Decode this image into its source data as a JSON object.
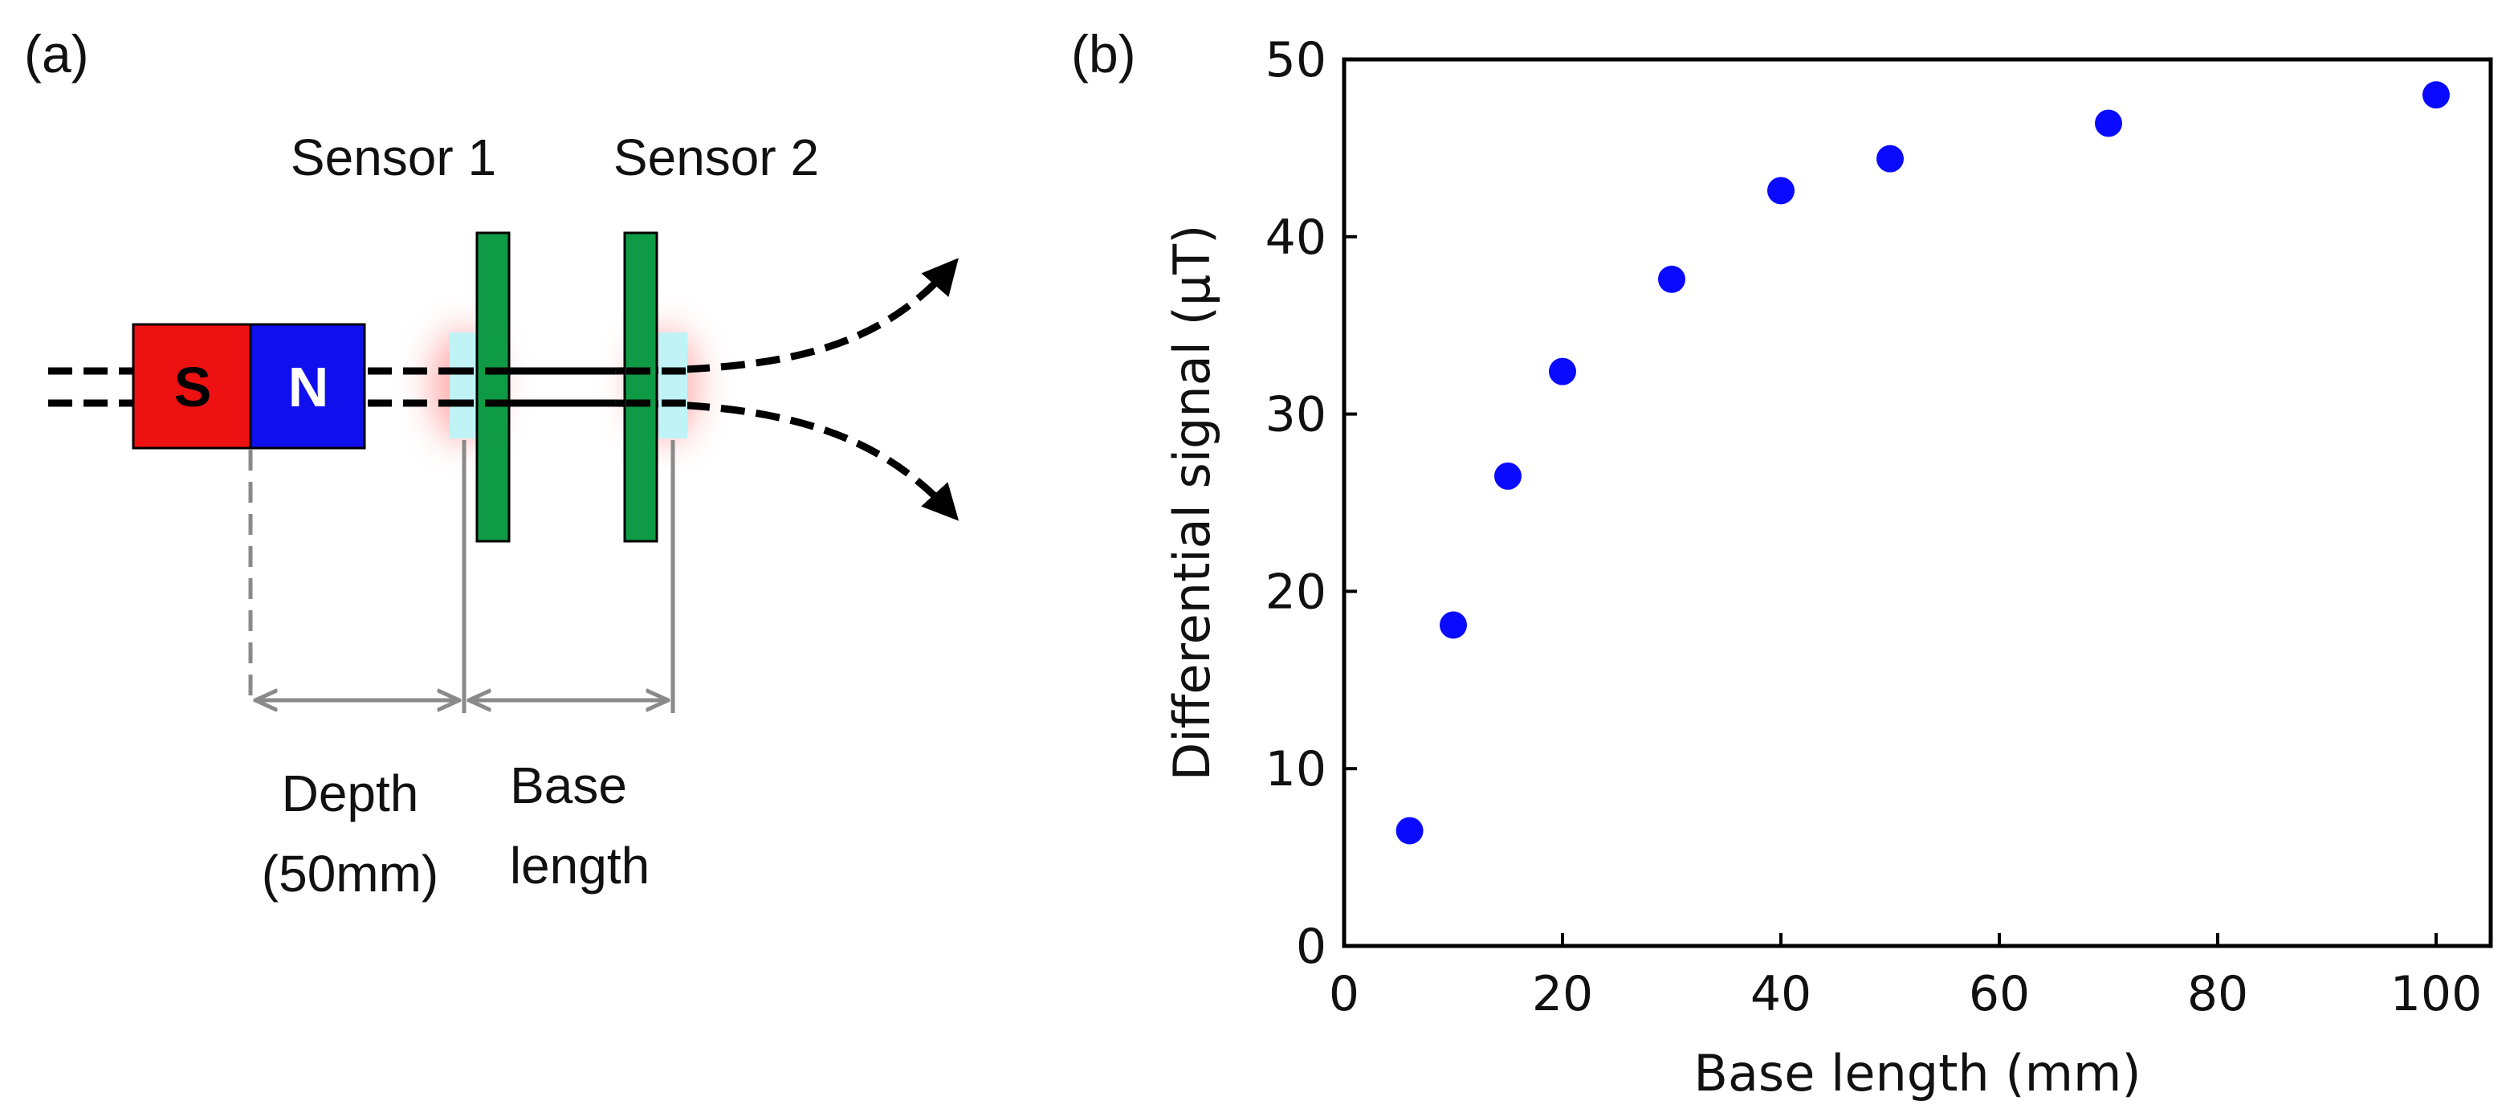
{
  "panel_a": {
    "label": "(a)",
    "sensor1_label": "Sensor 1",
    "sensor2_label": "Sensor 2",
    "magnet_s": "S",
    "magnet_n": "N",
    "depth_label": "Depth",
    "depth_value": "(50mm)",
    "base_label": "Base",
    "base_label_2": "length",
    "colors": {
      "south": "#ee1111",
      "north": "#1010ee",
      "sensor": "#0f9a46",
      "cell": "#bff3f6",
      "glow": "#ff9a9a"
    }
  },
  "chart_data": {
    "panel_label": "(b)",
    "type": "scatter",
    "title": "",
    "xlabel": "Base length (mm)",
    "ylabel": "Differential signal (μT)",
    "xlim": [
      0,
      105
    ],
    "ylim": [
      0,
      50
    ],
    "xticks": [
      "0",
      "20",
      "40",
      "60",
      "80",
      "100"
    ],
    "yticks": [
      "0",
      "10",
      "20",
      "30",
      "40",
      "50"
    ],
    "grid": false,
    "series": [
      {
        "name": "Differential signal",
        "color": "#0a0aff",
        "x": [
          6,
          10,
          15,
          20,
          30,
          40,
          50,
          70,
          100
        ],
        "y": [
          6.5,
          18.1,
          26.5,
          32.4,
          37.6,
          42.6,
          44.4,
          46.4,
          48.0
        ]
      }
    ]
  }
}
